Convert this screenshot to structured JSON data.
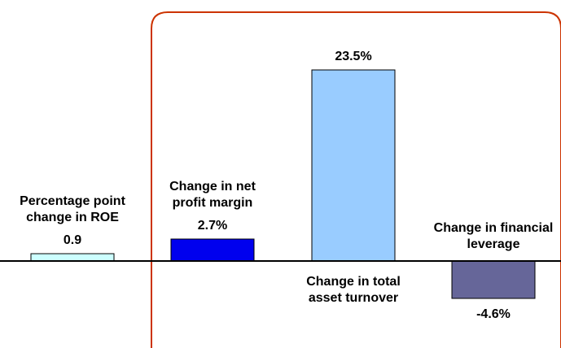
{
  "chart_data": {
    "type": "bar",
    "categories": [
      "Percentage point change in ROE",
      "Change in net profit margin",
      "Change in total asset turnover",
      "Change in financial leverage"
    ],
    "values": [
      0.9,
      2.7,
      23.5,
      -4.6
    ],
    "value_labels": [
      "0.9",
      "2.7%",
      "23.5%",
      "-4.6%"
    ],
    "colors": [
      "#ccffff",
      "#0000ee",
      "#99ccff",
      "#666699"
    ]
  }
}
